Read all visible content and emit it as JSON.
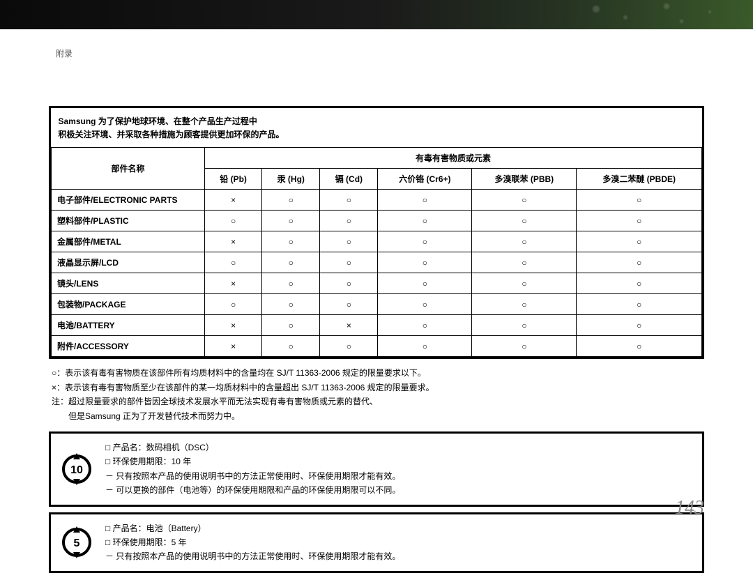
{
  "header_label": "附录",
  "intro_line1": "Samsung 为了保护地球环境、在整个产品生产过程中",
  "intro_line2": "积极关注环境、并采取各种措施为顾客提供更加环保的产品。",
  "table": {
    "row_header": "部件名称",
    "group_header": "有毒有害物质或元素",
    "columns": [
      "铅 (Pb)",
      "汞 (Hg)",
      "镉 (Cd)",
      "六价铬 (Cr6+)",
      "多溴联苯 (PBB)",
      "多溴二苯醚 (PBDE)"
    ],
    "rows": [
      {
        "name": "电子部件/ELECTRONIC PARTS",
        "cells": [
          "×",
          "○",
          "○",
          "○",
          "○",
          "○"
        ]
      },
      {
        "name": "塑料部件/PLASTIC",
        "cells": [
          "○",
          "○",
          "○",
          "○",
          "○",
          "○"
        ]
      },
      {
        "name": "金属部件/METAL",
        "cells": [
          "×",
          "○",
          "○",
          "○",
          "○",
          "○"
        ]
      },
      {
        "name": "液晶显示屏/LCD",
        "cells": [
          "○",
          "○",
          "○",
          "○",
          "○",
          "○"
        ]
      },
      {
        "name": "镜头/LENS",
        "cells": [
          "×",
          "○",
          "○",
          "○",
          "○",
          "○"
        ]
      },
      {
        "name": "包装物/PACKAGE",
        "cells": [
          "○",
          "○",
          "○",
          "○",
          "○",
          "○"
        ]
      },
      {
        "name": "电池/BATTERY",
        "cells": [
          "×",
          "○",
          "×",
          "○",
          "○",
          "○"
        ]
      },
      {
        "name": "附件/ACCESSORY",
        "cells": [
          "×",
          "○",
          "○",
          "○",
          "○",
          "○"
        ]
      }
    ]
  },
  "legend": {
    "l1": "○：表示该有毒有害物质在该部件所有均质材料中的含量均在 SJ/T 11363-2006 规定的限量要求以下。",
    "l2": "×：表示该有毒有害物质至少在该部件的某一均质材料中的含量超出 SJ/T 11363-2006 规定的限量要求。",
    "l3": "注：超过限量要求的部件皆因全球技术发展水平而无法实现有毒有害物质或元素的替代、",
    "l4": "但是Samsung 正为了开发替代技术而努力中。"
  },
  "block1": {
    "icon_num": "10",
    "a": "□ 产品名：数码相机（DSC）",
    "b": "□ 环保使用期限：10 年",
    "c": "－ 只有按照本产品的使用说明书中的方法正常使用时、环保使用期限才能有效。",
    "d": "－ 可以更换的部件（电池等）的环保使用期限和产品的环保使用期限可以不同。"
  },
  "block2": {
    "icon_num": "5",
    "a": "□ 产品名：电池（Battery）",
    "b": "□ 环保使用期限：5 年",
    "c": "－ 只有按照本产品的使用说明书中的方法正常使用时、环保使用期限才能有效。"
  },
  "page_number": "143",
  "colors": {
    "text": "#000",
    "page_num": "#888"
  }
}
